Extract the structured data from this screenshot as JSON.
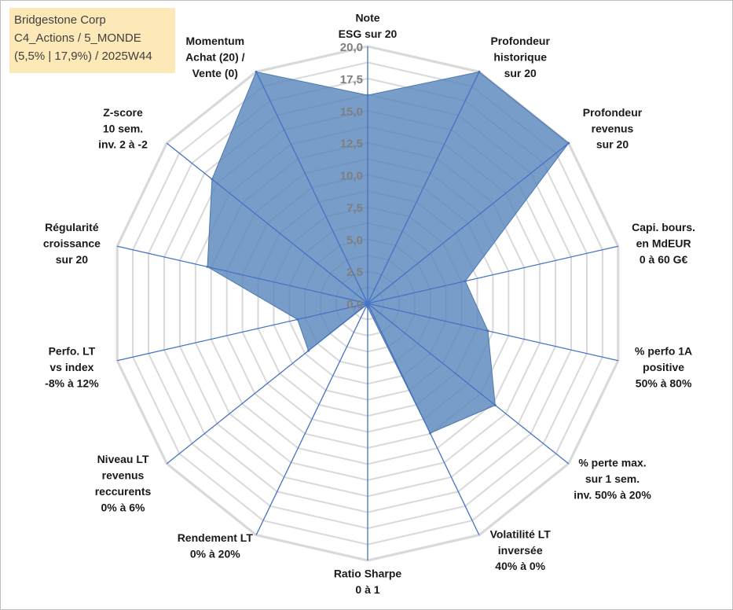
{
  "info": {
    "line1": "Bridgestone Corp",
    "line2": "C4_Actions / 5_MONDE",
    "line3": "(5,5% | 17,9%) / 2025W44"
  },
  "chart_data": {
    "type": "radar",
    "title": "Bridgestone Corp",
    "rmin": 0,
    "rmax": 20,
    "tick_step": 2.5,
    "grid_step": 1.25,
    "tick_labels": [
      "0,0",
      "2,5",
      "5,0",
      "7,5",
      "10,0",
      "12,5",
      "15,0",
      "17,5",
      "20,0"
    ],
    "axes": [
      "Note\nESG sur 20",
      "Profondeur\nhistorique\nsur 20",
      "Profondeur\nrevenus\nsur 20",
      "Capi. bours.\nen MdEUR\n0 à 60 G€",
      "% perfo 1A\npositive\n50% à 80%",
      "% perte max.\nsur 1 sem.\ninv. 50% à 20%",
      "Volatilité LT\ninversée\n40% à 0%",
      "Ratio Sharpe\n0 à 1",
      "Rendement LT\n0% à 20%",
      "Niveau LT\nrevenus\nreccurents\n0% à 6%",
      "Perfo. LT\nvs index\n-8% à 12%",
      "Régularité\ncroissance\nsur 20",
      "Z-score\n10 sem.\ninv. 2 à -2",
      "Momentum\nAchat (20) /\nVente (0)"
    ],
    "series": [
      {
        "name": "Bridgestone Corp",
        "values": [
          16.2,
          20,
          20,
          7.8,
          9.6,
          12.7,
          11.2,
          0.3,
          0.1,
          5.9,
          5.6,
          12.8,
          15.5,
          20
        ],
        "color": "#5b87bd",
        "line_color": "#4a77b0"
      }
    ]
  }
}
